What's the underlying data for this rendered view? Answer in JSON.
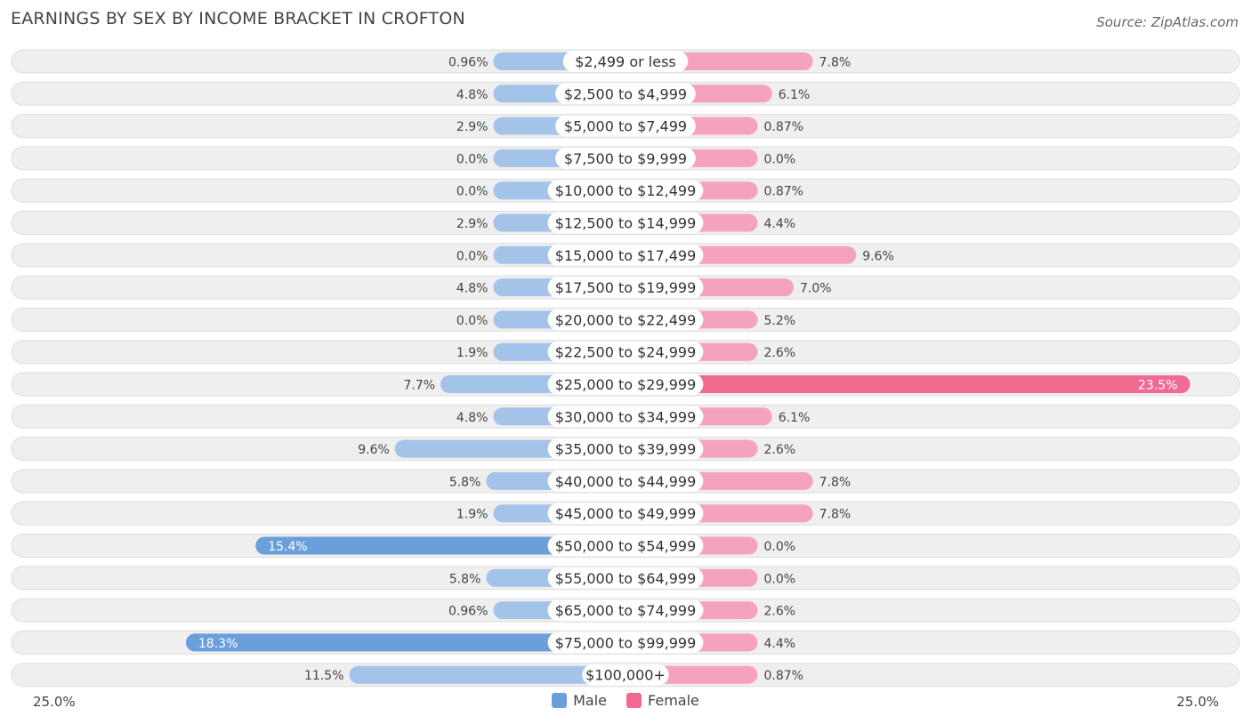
{
  "title": "EARNINGS BY SEX BY INCOME BRACKET IN CROFTON",
  "source": "Source: ZipAtlas.com",
  "axis": {
    "left_label": "25.0%",
    "right_label": "25.0%"
  },
  "legend": {
    "male_label": "Male",
    "female_label": "Female"
  },
  "colors": {
    "male": "#a4c3e8",
    "male_strong": "#6a9fdb",
    "female": "#f5a3bd",
    "female_strong": "#f06a92",
    "row_bg": "#efefef",
    "row_border": "#dddddd"
  },
  "chart_data": {
    "type": "bar",
    "orientation": "horizontal-diverging",
    "title": "EARNINGS BY SEX BY INCOME BRACKET IN CROFTON",
    "xlim": [
      -25.0,
      25.0
    ],
    "unit": "%",
    "categories": [
      "$2,499 or less",
      "$2,500 to $4,999",
      "$5,000 to $7,499",
      "$7,500 to $9,999",
      "$10,000 to $12,499",
      "$12,500 to $14,999",
      "$15,000 to $17,499",
      "$17,500 to $19,999",
      "$20,000 to $22,499",
      "$22,500 to $24,999",
      "$25,000 to $29,999",
      "$30,000 to $34,999",
      "$35,000 to $39,999",
      "$40,000 to $44,999",
      "$45,000 to $49,999",
      "$50,000 to $54,999",
      "$55,000 to $64,999",
      "$65,000 to $74,999",
      "$75,000 to $99,999",
      "$100,000+"
    ],
    "series": [
      {
        "name": "Male",
        "values": [
          0.96,
          4.8,
          2.9,
          0.0,
          0.0,
          2.9,
          0.0,
          4.8,
          0.0,
          1.9,
          7.7,
          4.8,
          9.6,
          5.8,
          1.9,
          15.4,
          5.8,
          0.96,
          18.3,
          11.5
        ],
        "labels": [
          "0.96%",
          "4.8%",
          "2.9%",
          "0.0%",
          "0.0%",
          "2.9%",
          "0.0%",
          "4.8%",
          "0.0%",
          "1.9%",
          "7.7%",
          "4.8%",
          "9.6%",
          "5.8%",
          "1.9%",
          "15.4%",
          "5.8%",
          "0.96%",
          "18.3%",
          "11.5%"
        ]
      },
      {
        "name": "Female",
        "values": [
          7.8,
          6.1,
          0.87,
          0.0,
          0.87,
          4.4,
          9.6,
          7.0,
          5.2,
          2.6,
          23.5,
          6.1,
          2.6,
          7.8,
          7.8,
          0.0,
          0.0,
          2.6,
          4.4,
          0.87
        ],
        "labels": [
          "7.8%",
          "6.1%",
          "0.87%",
          "0.0%",
          "0.87%",
          "4.4%",
          "9.6%",
          "7.0%",
          "5.2%",
          "2.6%",
          "23.5%",
          "6.1%",
          "2.6%",
          "7.8%",
          "7.8%",
          "0.0%",
          "0.0%",
          "2.6%",
          "4.4%",
          "0.87%"
        ]
      }
    ]
  }
}
